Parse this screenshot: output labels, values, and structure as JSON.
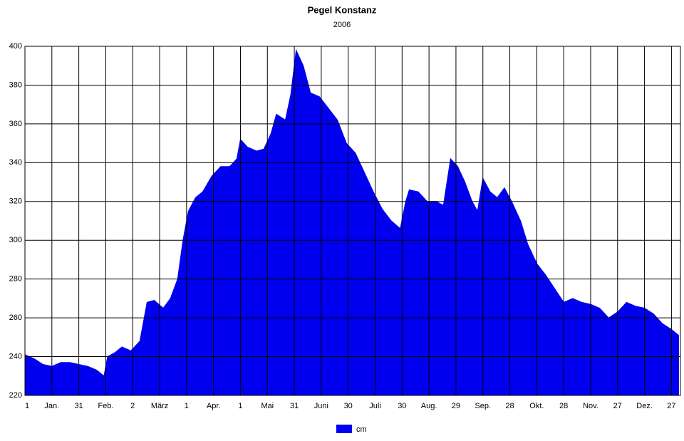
{
  "chart_data": {
    "type": "area",
    "title": "Pegel Konstanz",
    "subtitle": "2006",
    "x": [
      1,
      6,
      11,
      16,
      21,
      26,
      31,
      36,
      41,
      45,
      47,
      51,
      55,
      60,
      65,
      69,
      73,
      78,
      82,
      86,
      89,
      92,
      96,
      100,
      105,
      110,
      115,
      119,
      121,
      125,
      130,
      134,
      138,
      141,
      146,
      149,
      152,
      156,
      160,
      165,
      170,
      175,
      180,
      185,
      190,
      195,
      200,
      205,
      210,
      213,
      215,
      220,
      225,
      230,
      234,
      238,
      242,
      246,
      250,
      253,
      256,
      260,
      264,
      268,
      272,
      277,
      281,
      286,
      291,
      296,
      301,
      306,
      311,
      316,
      321,
      326,
      331,
      336,
      341,
      346,
      351,
      356,
      361,
      365
    ],
    "series": [
      {
        "name": "cm",
        "color": "#0000ee",
        "values": [
          241,
          239,
          236,
          235,
          237,
          237,
          236,
          235,
          233,
          230,
          240,
          242,
          245,
          243,
          248,
          268,
          269,
          265,
          270,
          280,
          300,
          315,
          322,
          325,
          333,
          338,
          338,
          342,
          352,
          348,
          346,
          347,
          355,
          365,
          362,
          375,
          398,
          390,
          376,
          374,
          368,
          362,
          350,
          345,
          335,
          325,
          316,
          310,
          306,
          320,
          326,
          325,
          320,
          320,
          318,
          342,
          338,
          330,
          320,
          315,
          332,
          325,
          322,
          327,
          320,
          310,
          298,
          288,
          282,
          275,
          268,
          270,
          268,
          267,
          265,
          260,
          263,
          268,
          266,
          265,
          262,
          257,
          254,
          251
        ]
      }
    ],
    "xlim": [
      1,
      366
    ],
    "xticks": [
      {
        "value": 1,
        "label": "1"
      },
      {
        "value": 16,
        "label": "Jan."
      },
      {
        "value": 31,
        "label": "31"
      },
      {
        "value": 46,
        "label": "Feb."
      },
      {
        "value": 61,
        "label": "2"
      },
      {
        "value": 76,
        "label": "März"
      },
      {
        "value": 91,
        "label": "1"
      },
      {
        "value": 106,
        "label": "Apr."
      },
      {
        "value": 121,
        "label": "1"
      },
      {
        "value": 136,
        "label": "Mai"
      },
      {
        "value": 151,
        "label": "31"
      },
      {
        "value": 166,
        "label": "Juni"
      },
      {
        "value": 181,
        "label": "30"
      },
      {
        "value": 196,
        "label": "Juli"
      },
      {
        "value": 211,
        "label": "30"
      },
      {
        "value": 226,
        "label": "Aug."
      },
      {
        "value": 241,
        "label": "29"
      },
      {
        "value": 256,
        "label": "Sep."
      },
      {
        "value": 271,
        "label": "28"
      },
      {
        "value": 286,
        "label": "Okt."
      },
      {
        "value": 301,
        "label": "28"
      },
      {
        "value": 316,
        "label": "Nov."
      },
      {
        "value": 331,
        "label": "27"
      },
      {
        "value": 346,
        "label": "Dez."
      },
      {
        "value": 361,
        "label": "27"
      }
    ],
    "ylim": [
      220,
      400
    ],
    "yticks": [
      220,
      240,
      260,
      280,
      300,
      320,
      340,
      360,
      380,
      400
    ],
    "grid": true
  }
}
